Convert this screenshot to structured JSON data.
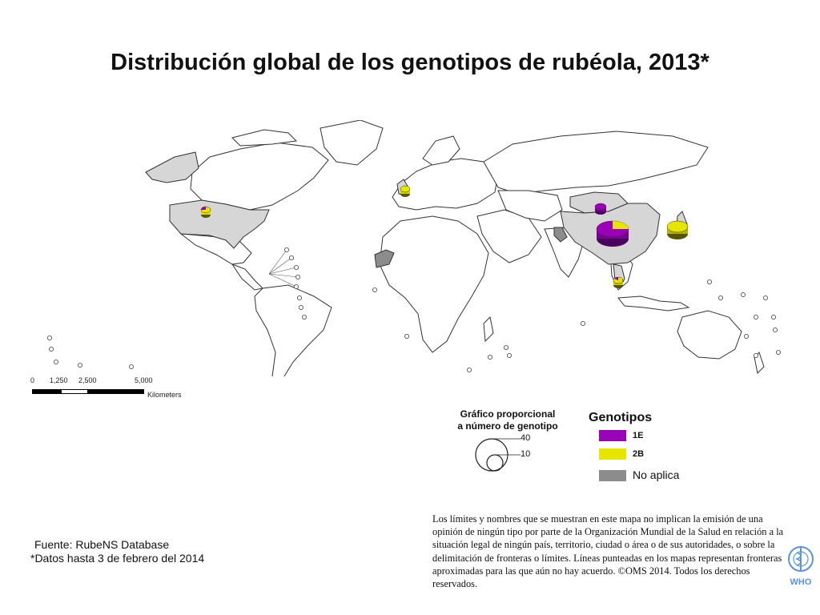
{
  "title": "Distribución global de los genotipos de rubéola, 2013*",
  "scale_bar": {
    "ticks": [
      "0",
      "1,250",
      "2,500",
      "5,000"
    ],
    "unit": "Kilometers"
  },
  "proportional_legend": {
    "title_line1": "Gráfico proporcional",
    "title_line2": "a  número de genotipo",
    "values": [
      "40",
      "10"
    ]
  },
  "legend": {
    "title": "Genotipos",
    "items": [
      {
        "label": "1E",
        "color": "#9a00b8"
      },
      {
        "label": "2B",
        "color": "#e5e500"
      },
      {
        "label": "No aplica",
        "color": "#8c8c8c"
      }
    ]
  },
  "colors": {
    "land": "#ffffff",
    "land_with_data": "#d6d6d6",
    "border": "#333333",
    "not_applicable": "#8c8c8c"
  },
  "source": {
    "line1": "Fuente: RubeNS Database",
    "line2": "*Datos hasta 3 de febrero del 2014"
  },
  "disclaimer": "Los límites y nombres que se muestran en este mapa no implican la emisión de una opinión de ningún tipo por parte de la Organización Mundial de la Salud en relación a la situación legal de ningún país, territorio, ciudad o área o de sus autoridades, o sobre la delimitación de fronteras o límites.  Líneas punteadas en los mapas representan fronteras aproximadas para las que aún no hay acuerdo. ©OMS 2014. Todos los derechos reservados.",
  "logo_text": "WHO",
  "pies": [
    {
      "region": "United States",
      "share_1E": 0.5,
      "share_2B": 0.5
    },
    {
      "region": "United Kingdom",
      "share_1E": 0.0,
      "share_2B": 1.0
    },
    {
      "region": "Mongolia",
      "share_1E": 1.0,
      "share_2B": 0.0
    },
    {
      "region": "China",
      "share_1E": 0.75,
      "share_2B": 0.25
    },
    {
      "region": "Japan",
      "share_1E": 0.0,
      "share_2B": 1.0
    },
    {
      "region": "Thailand",
      "share_1E": 0.2,
      "share_2B": 0.8
    }
  ]
}
